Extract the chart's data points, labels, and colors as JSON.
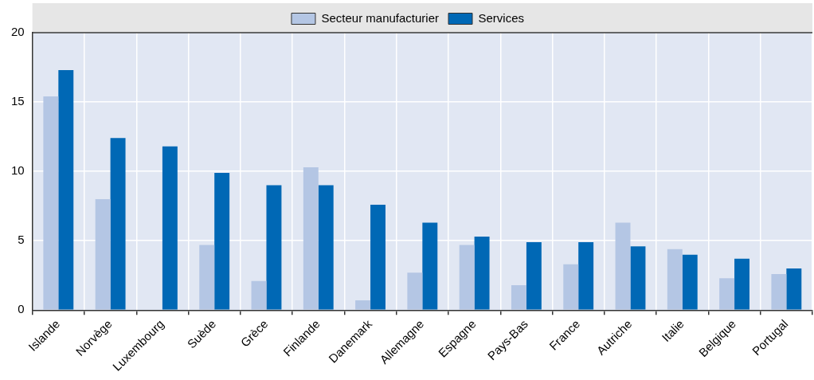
{
  "chart_data": {
    "type": "bar",
    "categories": [
      "Islande",
      "Norvège",
      "Luxembourg",
      "Suède",
      "Grèce",
      "Finlande",
      "Danemark",
      "Allemagne",
      "Espagne",
      "Pays-Bas",
      "France",
      "Autriche",
      "Italie",
      "Belgique",
      "Portugal"
    ],
    "series": [
      {
        "name": "Secteur manufacturier",
        "color": "#b4c6e4",
        "values": [
          15.4,
          8.0,
          null,
          4.7,
          2.1,
          10.3,
          0.7,
          2.7,
          4.7,
          1.8,
          3.3,
          6.3,
          4.4,
          2.3,
          2.6
        ]
      },
      {
        "name": "Services",
        "color": "#0068b5",
        "values": [
          17.3,
          12.4,
          11.8,
          9.9,
          9.0,
          9.0,
          7.6,
          6.3,
          5.3,
          4.9,
          4.9,
          4.6,
          4.0,
          3.7,
          3.0
        ]
      }
    ],
    "ylim": [
      0,
      20
    ],
    "yticks": [
      0,
      5,
      10,
      15,
      20
    ],
    "grid": true,
    "legend": "top"
  }
}
